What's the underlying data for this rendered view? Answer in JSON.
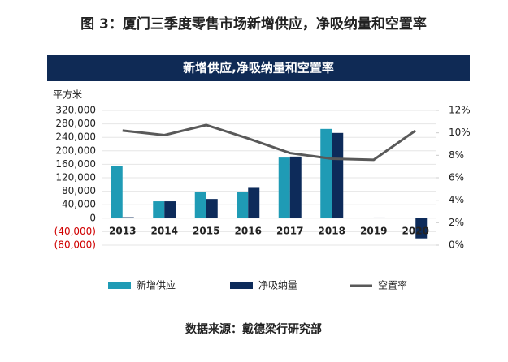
{
  "chart_data": {
    "type": "bar-line",
    "figure_title": "图 3：厦门三季度零售市场新增供应，净吸纳量和空置率",
    "title": "新增供应,净吸纳量和空置率",
    "y_label": "平方米",
    "source": "数据来源：戴德梁行研究部",
    "categories": [
      "2013",
      "2014",
      "2015",
      "2016",
      "2017",
      "2018",
      "2019",
      "2020"
    ],
    "series": [
      {
        "name": "新增供应",
        "color": "#1f9bb5",
        "kind": "bar",
        "values": [
          155000,
          50000,
          78000,
          77000,
          180000,
          265000,
          0,
          0
        ]
      },
      {
        "name": "净吸纳量",
        "color": "#0d2b5a",
        "kind": "bar",
        "values": [
          3000,
          50000,
          57000,
          90000,
          183000,
          253000,
          2000,
          -60000
        ]
      },
      {
        "name": "空置率",
        "color": "#595959",
        "kind": "line",
        "axis": "y2",
        "values": [
          10.2,
          9.8,
          10.7,
          9.5,
          8.2,
          7.7,
          7.6,
          10.2
        ]
      }
    ],
    "ylim": [
      -80000,
      320000
    ],
    "yticks": [
      {
        "value": -80000,
        "label": "(80,000)"
      },
      {
        "value": -40000,
        "label": "(40,000)"
      },
      0,
      {
        "value": 40000,
        "label": "40,000"
      },
      {
        "value": 80000,
        "label": "80,000"
      },
      {
        "value": 120000,
        "label": "120,000"
      },
      {
        "value": 160000,
        "label": "160,000"
      },
      {
        "value": 200000,
        "label": "200,000"
      },
      {
        "value": 240000,
        "label": "240,000"
      },
      {
        "value": 280000,
        "label": "280,000"
      },
      {
        "value": 320000,
        "label": "320,000"
      }
    ],
    "y2lim": [
      0,
      12
    ],
    "y2ticks": [
      {
        "value": 0,
        "label": "0%"
      },
      {
        "value": 2,
        "label": "2%"
      },
      {
        "value": 4,
        "label": "4%"
      },
      {
        "value": 6,
        "label": "6%"
      },
      {
        "value": 8,
        "label": "8%"
      },
      {
        "value": 10,
        "label": "10%"
      },
      {
        "value": 12,
        "label": "12%"
      }
    ],
    "grid": true
  }
}
